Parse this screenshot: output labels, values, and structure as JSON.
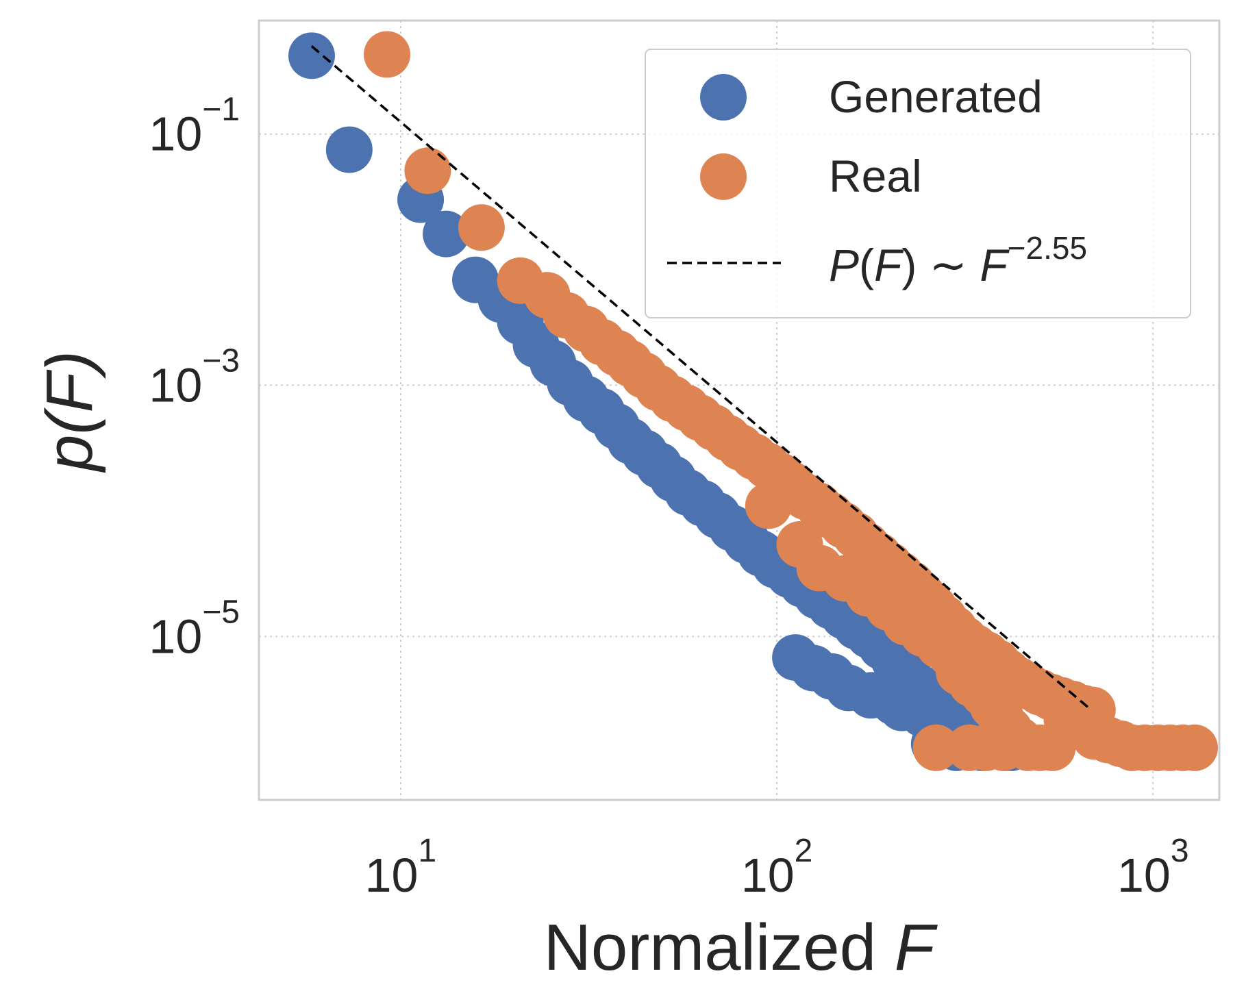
{
  "chart_data": {
    "type": "scatter",
    "x_scale": "log",
    "y_scale": "log",
    "xlim": [
      4.2,
      1500
    ],
    "ylim": [
      5e-07,
      0.8
    ],
    "xlabel_text": "Normalized ",
    "xlabel_var": "F",
    "ylabel": "p(F)",
    "x_ticks": [
      {
        "value": 10,
        "base": "10",
        "exp": "1"
      },
      {
        "value": 100,
        "base": "10",
        "exp": "2"
      },
      {
        "value": 1000,
        "base": "10",
        "exp": "3"
      }
    ],
    "y_ticks": [
      {
        "value": 0.1,
        "base": "10",
        "exp": "−1"
      },
      {
        "value": 0.001,
        "base": "10",
        "exp": "−3"
      },
      {
        "value": 1e-05,
        "base": "10",
        "exp": "−5"
      }
    ],
    "grid": true,
    "legend_position": "top-right",
    "series": [
      {
        "name": "Generated",
        "color": "#4c72b0",
        "points": [
          [
            5.8,
            0.42
          ],
          [
            7.3,
            0.075
          ],
          [
            11.3,
            0.03
          ],
          [
            13.2,
            0.016
          ],
          [
            15.8,
            0.0069
          ],
          [
            18.5,
            0.0048
          ],
          [
            20.8,
            0.0032
          ],
          [
            22.9,
            0.0021
          ],
          [
            25.4,
            0.0015
          ],
          [
            28.2,
            0.00105
          ],
          [
            31.1,
            0.00078
          ],
          [
            34.2,
            0.00062
          ],
          [
            37.5,
            0.00047
          ],
          [
            40.8,
            0.00036
          ],
          [
            44.5,
            0.00029
          ],
          [
            48.6,
            0.00023
          ],
          [
            53,
            0.00018
          ],
          [
            58,
            0.00014
          ],
          [
            63.5,
            0.000115
          ],
          [
            69.5,
            9.2e-05
          ],
          [
            76,
            7.3e-05
          ],
          [
            83,
            5.8e-05
          ],
          [
            90.5,
            4.6e-05
          ],
          [
            99,
            3.7e-05
          ],
          [
            108,
            3.1e-05
          ],
          [
            117,
            2.6e-05
          ],
          [
            128,
            2.1e-05
          ],
          [
            139,
            1.75e-05
          ],
          [
            151,
            1.45e-05
          ],
          [
            163,
            1.2e-05
          ],
          [
            176,
            1.02e-05
          ],
          [
            190,
            8.3e-06
          ],
          [
            205,
            6.5e-06
          ],
          [
            223,
            5e-06
          ],
          [
            244,
            3.8e-06
          ],
          [
            266,
            3.1e-06
          ],
          [
            290,
            2.6e-06
          ],
          [
            318,
            2.2e-06
          ],
          [
            348,
            1.9e-06
          ],
          [
            370,
            1.7e-06
          ],
          [
            388,
            1.5e-06
          ],
          [
            405,
            1.3e-06
          ],
          [
            125,
            5.6e-06
          ],
          [
            155,
            3.9e-06
          ],
          [
            205,
            3e-06
          ],
          [
            245,
            2.4e-06
          ],
          [
            112,
            6.8e-06
          ],
          [
            140,
            4.8e-06
          ],
          [
            178,
            3.4e-06
          ],
          [
            215,
            2.7e-06
          ],
          [
            280,
            2.1e-06
          ],
          [
            330,
            1.7e-06
          ],
          [
            262,
            1.4e-06
          ],
          [
            300,
            1.3e-06
          ],
          [
            350,
            1.3e-06
          ],
          [
            420,
            1.3e-06
          ]
        ]
      },
      {
        "name": "Real",
        "color": "#dd8452",
        "points": [
          [
            9.2,
            0.43
          ],
          [
            11.8,
            0.051
          ],
          [
            16.4,
            0.018
          ],
          [
            20.8,
            0.0068
          ],
          [
            24.5,
            0.0052
          ],
          [
            27.6,
            0.0036
          ],
          [
            31.1,
            0.0028
          ],
          [
            34.3,
            0.0022
          ],
          [
            37.6,
            0.0018
          ],
          [
            40.6,
            0.0015
          ],
          [
            44.3,
            0.0012
          ],
          [
            48.4,
            0.00095
          ],
          [
            52.8,
            0.00078
          ],
          [
            57.5,
            0.00066
          ],
          [
            62.5,
            0.00055
          ],
          [
            68,
            0.00046
          ],
          [
            74,
            0.00038
          ],
          [
            80,
            0.00032
          ],
          [
            87,
            0.00027
          ],
          [
            94,
            0.00023
          ],
          [
            102,
            0.00019
          ],
          [
            110,
            0.00016
          ],
          [
            119,
            0.00013
          ],
          [
            129,
            0.00011
          ],
          [
            139,
            9.2e-05
          ],
          [
            150,
            7.7e-05
          ],
          [
            162,
            6.4e-05
          ],
          [
            173,
            5.3e-05
          ],
          [
            186,
            4.4e-05
          ],
          [
            199,
            3.7e-05
          ],
          [
            213,
            3.1e-05
          ],
          [
            228,
            2.6e-05
          ],
          [
            244,
            2.1e-05
          ],
          [
            261,
            1.7e-05
          ],
          [
            278,
            1.4e-05
          ],
          [
            296,
            1.15e-05
          ],
          [
            315,
            9.5e-06
          ],
          [
            336,
            8.2e-06
          ],
          [
            360,
            7.2e-06
          ],
          [
            385,
            6.2e-06
          ],
          [
            410,
            5.2e-06
          ],
          [
            438,
            4.5e-06
          ],
          [
            468,
            4e-06
          ],
          [
            500,
            3.6e-06
          ],
          [
            535,
            3.3e-06
          ],
          [
            570,
            3.1e-06
          ],
          [
            610,
            2.9e-06
          ],
          [
            650,
            2.7e-06
          ],
          [
            690,
            2.6e-06
          ],
          [
            590,
            2.2e-06
          ],
          [
            640,
            1.9e-06
          ],
          [
            700,
            1.6e-06
          ],
          [
            760,
            1.5e-06
          ],
          [
            820,
            1.4e-06
          ],
          [
            880,
            1.3e-06
          ],
          [
            950,
            1.3e-06
          ],
          [
            1030,
            1.3e-06
          ],
          [
            1110,
            1.3e-06
          ],
          [
            1200,
            1.3e-06
          ],
          [
            1290,
            1.3e-06
          ],
          [
            130,
            3.5e-05
          ],
          [
            152,
            2.9e-05
          ],
          [
            175,
            2.2e-05
          ],
          [
            198,
            1.7e-05
          ],
          [
            220,
            1.3e-05
          ],
          [
            245,
            1.05e-05
          ],
          [
            270,
            8.5e-06
          ],
          [
            290,
            7.2e-06
          ],
          [
            305,
            5.2e-06
          ],
          [
            330,
            4.2e-06
          ],
          [
            355,
            3.5e-06
          ],
          [
            375,
            2.8e-06
          ],
          [
            395,
            2.2e-06
          ],
          [
            415,
            1.8e-06
          ],
          [
            440,
            1.5e-06
          ],
          [
            465,
            1.3e-06
          ],
          [
            500,
            1.3e-06
          ],
          [
            540,
            1.3e-06
          ],
          [
            325,
            1.3e-06
          ],
          [
            360,
            1.3e-06
          ],
          [
            400,
            1.3e-06
          ],
          [
            265,
            1.3e-06
          ],
          [
            115,
            5.4e-05
          ],
          [
            95,
            0.00011
          ]
        ]
      }
    ],
    "fit_line": {
      "label_var": "P",
      "label_arg": "F",
      "label_mid": " ∼ ",
      "label_base": "F",
      "label_exp": "−2.55",
      "exponent": -2.55,
      "anchor_x": 5.8,
      "anchor_y": 0.5,
      "x_end": 680,
      "color": "#000000"
    }
  }
}
